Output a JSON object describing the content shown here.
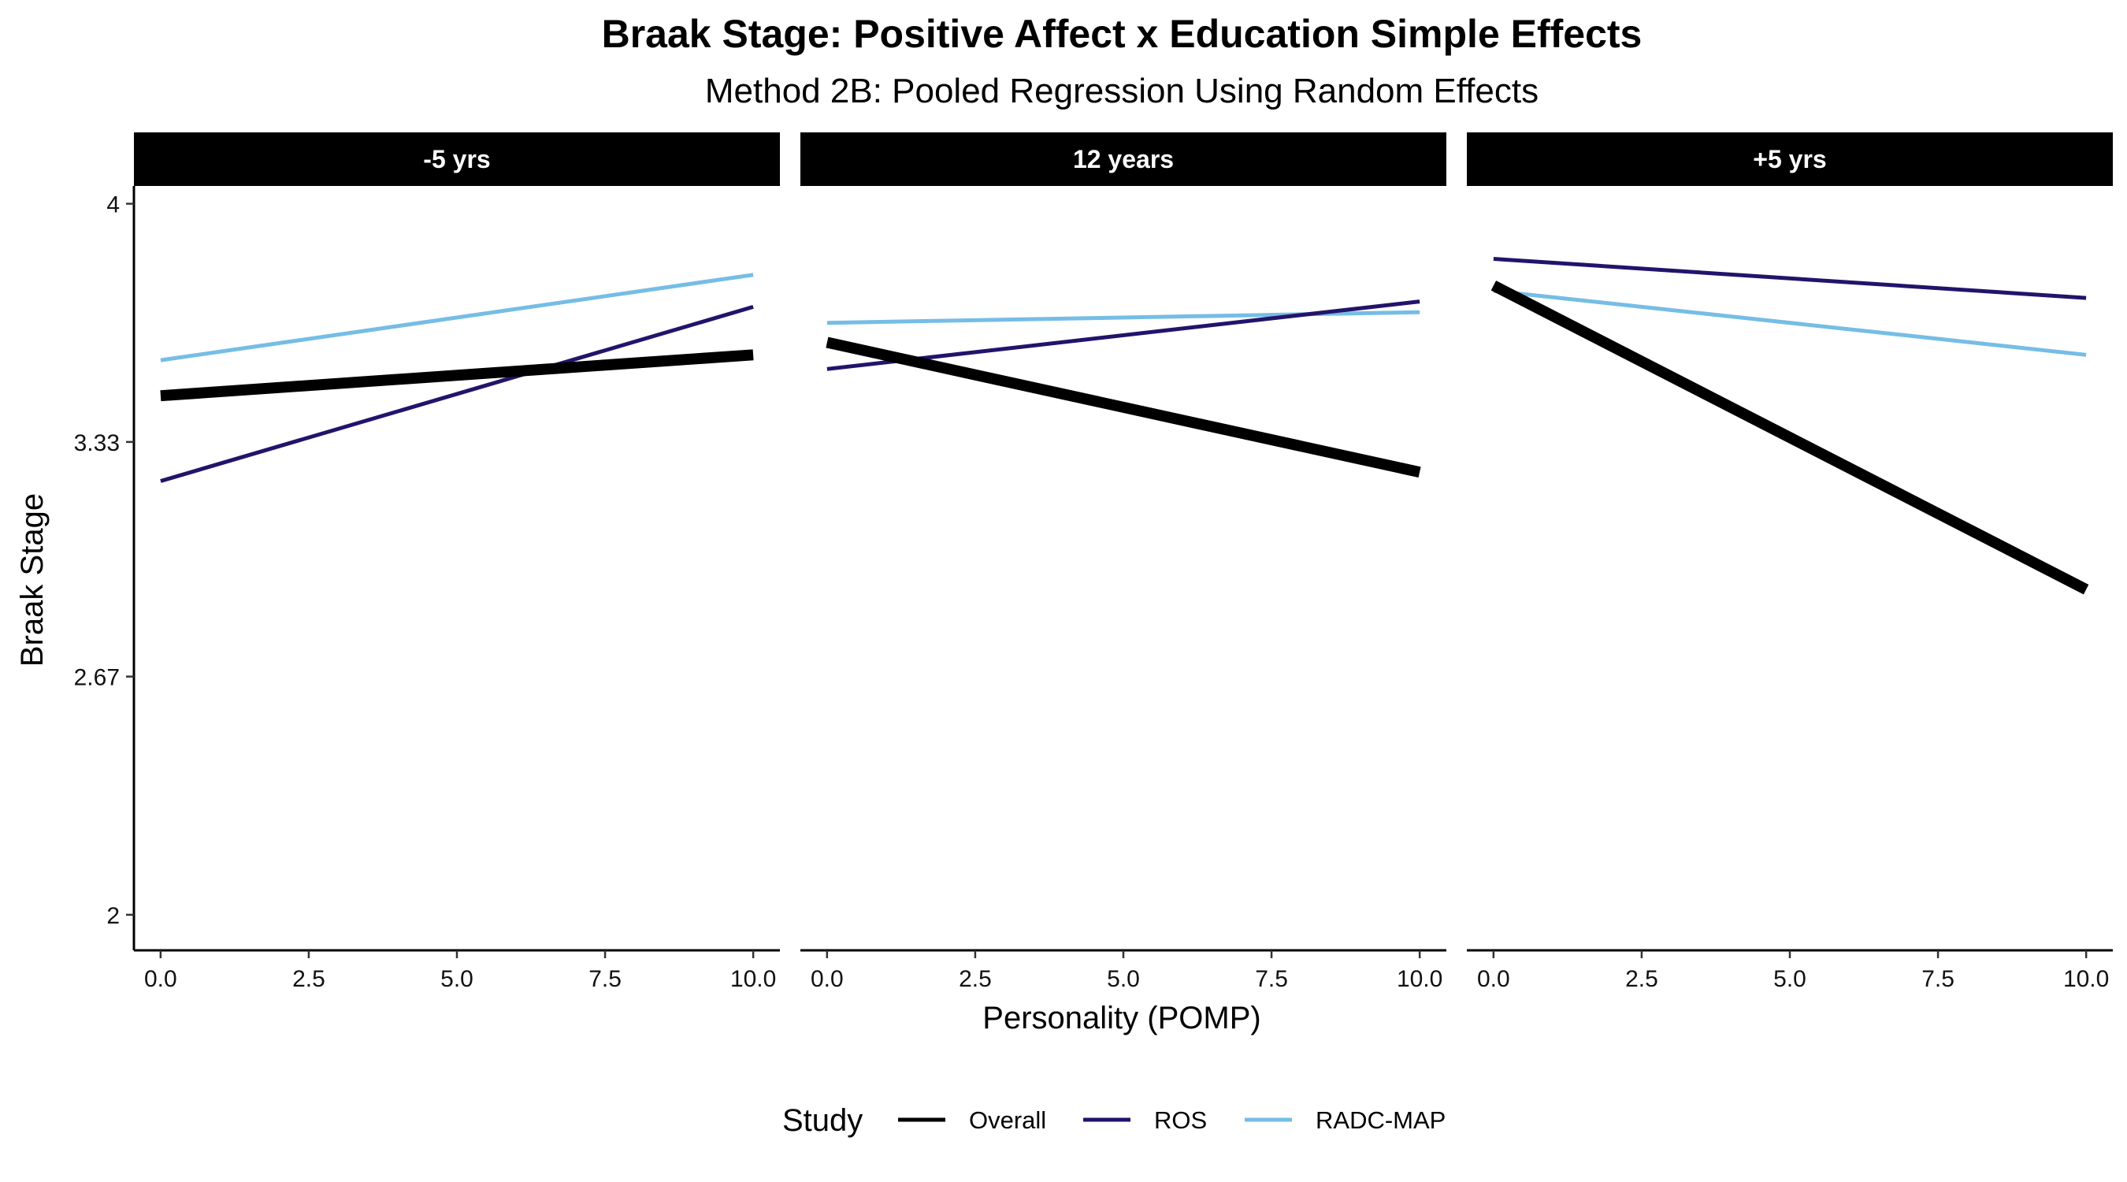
{
  "chart_data": {
    "type": "line",
    "title": "Braak Stage: Positive Affect x Education Simple Effects",
    "subtitle": "Method 2B: Pooled Regression Using Random Effects",
    "xlabel": "Personality (POMP)",
    "ylabel": "Braak Stage",
    "xlim": [
      -0.45,
      10.45
    ],
    "ylim": [
      1.9,
      4.05
    ],
    "x_ticks": [
      0,
      2.5,
      5,
      7.5,
      10
    ],
    "x_tick_labels": [
      "0.0",
      "2.5",
      "5.0",
      "7.5",
      "10.0"
    ],
    "y_ticks": [
      2,
      2.67,
      3.33,
      4
    ],
    "y_tick_labels": [
      "2",
      "2.67",
      "3.33",
      "4"
    ],
    "grid": false,
    "legend": {
      "title": "Study",
      "position": "bottom",
      "entries": [
        {
          "label": "Overall",
          "color": "#000000"
        },
        {
          "label": "ROS",
          "color": "#23136b"
        },
        {
          "label": "RADC-MAP",
          "color": "#75bde6"
        }
      ]
    },
    "facets": [
      {
        "label": "-5 yrs",
        "series": [
          {
            "name": "Overall",
            "color": "#000000",
            "x": [
              0,
              10
            ],
            "y": [
              3.46,
              3.575
            ]
          },
          {
            "name": "ROS",
            "color": "#23136b",
            "x": [
              0,
              10
            ],
            "y": [
              3.22,
              3.71
            ]
          },
          {
            "name": "RADC-MAP",
            "color": "#75bde6",
            "x": [
              0,
              10
            ],
            "y": [
              3.56,
              3.8
            ]
          }
        ]
      },
      {
        "label": "12 years",
        "series": [
          {
            "name": "Overall",
            "color": "#000000",
            "x": [
              0,
              10
            ],
            "y": [
              3.61,
              3.245
            ]
          },
          {
            "name": "ROS",
            "color": "#23136b",
            "x": [
              0,
              10
            ],
            "y": [
              3.535,
              3.725
            ]
          },
          {
            "name": "RADC-MAP",
            "color": "#75bde6",
            "x": [
              0,
              10
            ],
            "y": [
              3.665,
              3.695
            ]
          }
        ]
      },
      {
        "label": "+5 yrs",
        "series": [
          {
            "name": "Overall",
            "color": "#000000",
            "x": [
              0,
              10
            ],
            "y": [
              3.77,
              2.915
            ]
          },
          {
            "name": "ROS",
            "color": "#23136b",
            "x": [
              0,
              10
            ],
            "y": [
              3.845,
              3.735
            ]
          },
          {
            "name": "RADC-MAP",
            "color": "#75bde6",
            "x": [
              0,
              10
            ],
            "y": [
              3.755,
              3.575
            ]
          }
        ]
      }
    ]
  }
}
